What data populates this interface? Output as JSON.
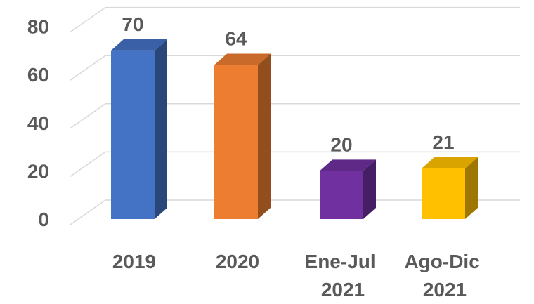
{
  "chart_data": {
    "type": "bar3d",
    "categories": [
      "2019",
      "2020",
      "Ene-Jul 2021",
      "Ago-Dic 2021"
    ],
    "values": [
      70,
      64,
      20,
      21
    ],
    "colors": [
      "#4472c4",
      "#ed7d31",
      "#7030a0",
      "#ffc000"
    ],
    "ylim": [
      0,
      80
    ],
    "yticks": [
      0,
      20,
      40,
      60,
      80
    ],
    "grid": true
  }
}
